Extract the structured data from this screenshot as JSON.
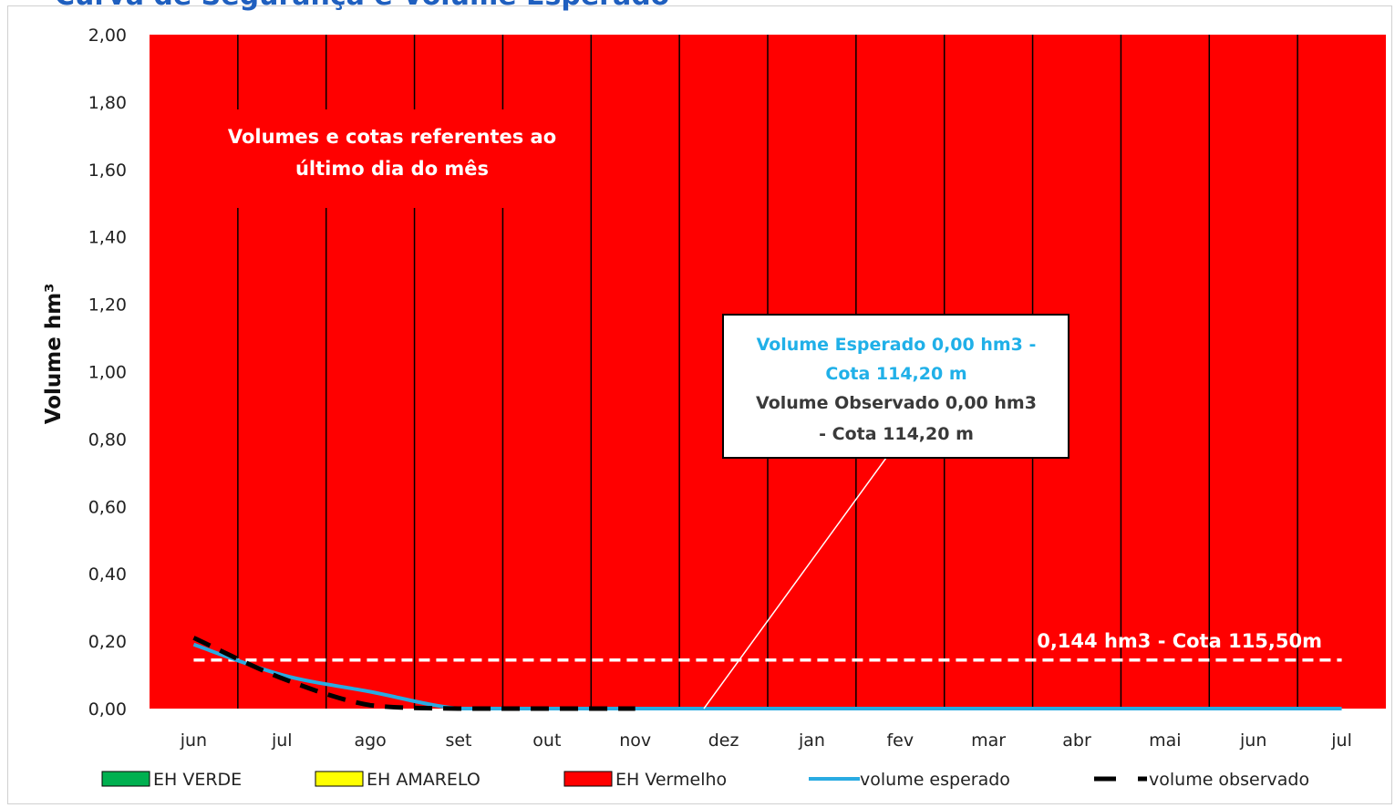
{
  "title": "Curva de Segurança e Volume Esperado",
  "chart_data": {
    "type": "area",
    "ylabel": "Volume hm³",
    "xlabel": "",
    "ylim": [
      0,
      2.0
    ],
    "yticks": [
      "0,00",
      "0,20",
      "0,40",
      "0,60",
      "0,80",
      "1,00",
      "1,20",
      "1,40",
      "1,60",
      "1,80",
      "2,00"
    ],
    "categories": [
      "jun",
      "jul",
      "ago",
      "set",
      "out",
      "nov",
      "dez",
      "jan",
      "fev",
      "mar",
      "abr",
      "mai",
      "jun",
      "jul"
    ],
    "zones": [
      {
        "name": "EH VERDE",
        "color": "#00b050",
        "values": [
          0,
          0,
          0,
          0,
          0,
          0,
          0,
          0,
          0,
          0,
          0,
          0,
          0,
          0
        ]
      },
      {
        "name": "EH AMARELO",
        "color": "#ffff00",
        "values": [
          0,
          0,
          0,
          0,
          0,
          0,
          0,
          0,
          0,
          0,
          0,
          0,
          0,
          0
        ]
      },
      {
        "name": "EH Vermelho",
        "color": "#ff0000",
        "values": [
          2,
          2,
          2,
          2,
          2,
          2,
          2,
          2,
          2,
          2,
          2,
          2,
          2,
          2
        ]
      }
    ],
    "series": [
      {
        "name": "volume esperado",
        "color": "#29abe2",
        "style": "solid",
        "values": [
          0.19,
          0.1,
          0.05,
          0.0,
          0.0,
          0.0,
          0.0,
          0.0,
          0.0,
          0.0,
          0.0,
          0.0,
          0.0,
          0.0
        ]
      },
      {
        "name": "volume observado",
        "color": "#000000",
        "style": "dashed",
        "values": [
          0.21,
          0.09,
          0.01,
          0.0,
          0.0,
          0.0,
          null,
          null,
          null,
          null,
          null,
          null,
          null,
          null
        ]
      }
    ],
    "threshold": {
      "value": 0.144,
      "label": "0,144 hm3 - Cota 115,50m",
      "color": "#ffffff"
    },
    "note": [
      "Volumes e cotas referentes ao",
      "último dia do mês"
    ],
    "callout": {
      "line1": "Volume Esperado 0,00 hm3 -",
      "line2": "Cota 114,20 m",
      "line3": "Volume Observado 0,00 hm3",
      "line4": "- Cota 114,20 m"
    },
    "grid": true,
    "legend_position": "bottom"
  }
}
